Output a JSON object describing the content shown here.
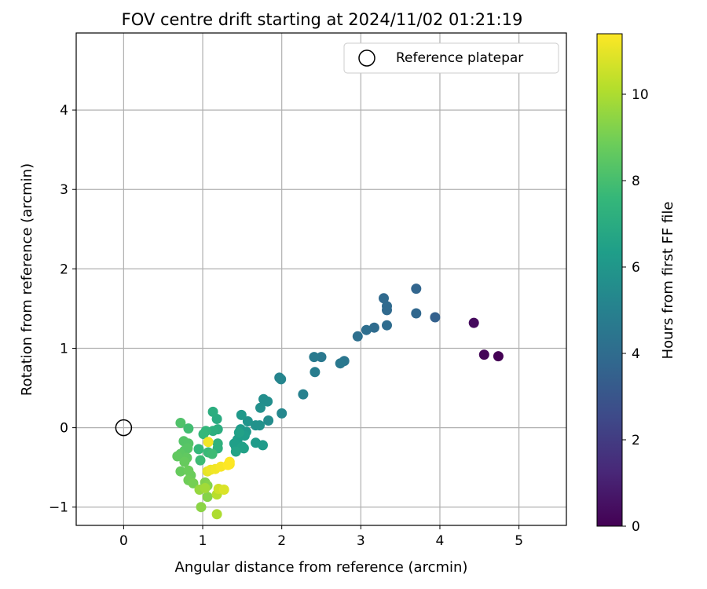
{
  "chart_data": {
    "type": "scatter",
    "title": "FOV centre drift starting at 2024/11/02 01:21:19",
    "xlabel": "Angular distance from reference (arcmin)",
    "ylabel": "Rotation from reference (arcmin)",
    "xlim": [
      -0.6,
      5.6
    ],
    "ylim": [
      -1.23,
      4.97
    ],
    "xticks": [
      0,
      1,
      2,
      3,
      4,
      5
    ],
    "yticks": [
      -1,
      0,
      1,
      2,
      3,
      4
    ],
    "grid": true,
    "legend": {
      "position": "top-right",
      "entries": [
        "Reference platepar"
      ]
    },
    "colorbar": {
      "label": "Hours from first FF file",
      "colormap": "viridis",
      "range": [
        0,
        11.4
      ],
      "ticks": [
        0,
        2,
        4,
        6,
        8,
        10
      ]
    },
    "reference_point": {
      "x": 0,
      "y": 0,
      "label": "Reference platepar"
    },
    "points": [
      {
        "x": 4.43,
        "y": 1.32,
        "h": 0.3
      },
      {
        "x": 4.56,
        "y": 0.92,
        "h": 0.15
      },
      {
        "x": 4.74,
        "y": 0.9,
        "h": 0.0
      },
      {
        "x": 3.94,
        "y": 1.39,
        "h": 3.5
      },
      {
        "x": 3.7,
        "y": 1.75,
        "h": 3.7
      },
      {
        "x": 3.7,
        "y": 1.44,
        "h": 3.8
      },
      {
        "x": 3.29,
        "y": 1.63,
        "h": 3.9
      },
      {
        "x": 3.33,
        "y": 1.53,
        "h": 3.9
      },
      {
        "x": 3.33,
        "y": 1.48,
        "h": 3.9
      },
      {
        "x": 3.33,
        "y": 1.29,
        "h": 4.0
      },
      {
        "x": 3.17,
        "y": 1.26,
        "h": 4.0
      },
      {
        "x": 3.07,
        "y": 1.23,
        "h": 4.1
      },
      {
        "x": 2.96,
        "y": 1.15,
        "h": 4.2
      },
      {
        "x": 2.79,
        "y": 0.84,
        "h": 4.5
      },
      {
        "x": 2.74,
        "y": 0.81,
        "h": 4.6
      },
      {
        "x": 2.5,
        "y": 0.89,
        "h": 4.6
      },
      {
        "x": 2.41,
        "y": 0.89,
        "h": 4.7
      },
      {
        "x": 2.42,
        "y": 0.7,
        "h": 4.8
      },
      {
        "x": 2.27,
        "y": 0.42,
        "h": 5.0
      },
      {
        "x": 1.97,
        "y": 0.63,
        "h": 5.1
      },
      {
        "x": 1.99,
        "y": 0.61,
        "h": 5.2
      },
      {
        "x": 2.0,
        "y": 0.18,
        "h": 5.3
      },
      {
        "x": 1.83,
        "y": 0.09,
        "h": 5.5
      },
      {
        "x": 1.77,
        "y": 0.36,
        "h": 5.6
      },
      {
        "x": 1.82,
        "y": 0.33,
        "h": 5.6
      },
      {
        "x": 1.73,
        "y": 0.25,
        "h": 5.7
      },
      {
        "x": 1.72,
        "y": 0.03,
        "h": 5.8
      },
      {
        "x": 1.67,
        "y": 0.03,
        "h": 5.8
      },
      {
        "x": 1.57,
        "y": 0.08,
        "h": 5.9
      },
      {
        "x": 1.49,
        "y": 0.16,
        "h": 6.1
      },
      {
        "x": 1.48,
        "y": -0.02,
        "h": 6.2
      },
      {
        "x": 1.55,
        "y": -0.05,
        "h": 6.1
      },
      {
        "x": 1.53,
        "y": -0.1,
        "h": 6.3
      },
      {
        "x": 1.44,
        "y": -0.15,
        "h": 6.3
      },
      {
        "x": 1.4,
        "y": -0.2,
        "h": 6.4
      },
      {
        "x": 1.42,
        "y": -0.24,
        "h": 6.4
      },
      {
        "x": 1.5,
        "y": -0.24,
        "h": 6.5
      },
      {
        "x": 1.52,
        "y": -0.26,
        "h": 6.5
      },
      {
        "x": 1.42,
        "y": -0.3,
        "h": 6.6
      },
      {
        "x": 1.67,
        "y": -0.19,
        "h": 6.2
      },
      {
        "x": 1.76,
        "y": -0.22,
        "h": 6.2
      },
      {
        "x": 1.46,
        "y": -0.06,
        "h": 6.5
      },
      {
        "x": 1.18,
        "y": 0.11,
        "h": 7.0
      },
      {
        "x": 1.13,
        "y": 0.2,
        "h": 7.1
      },
      {
        "x": 1.19,
        "y": -0.02,
        "h": 7.1
      },
      {
        "x": 1.13,
        "y": -0.04,
        "h": 7.2
      },
      {
        "x": 1.19,
        "y": -0.2,
        "h": 7.3
      },
      {
        "x": 1.19,
        "y": -0.26,
        "h": 7.3
      },
      {
        "x": 1.04,
        "y": -0.04,
        "h": 7.5
      },
      {
        "x": 1.01,
        "y": -0.08,
        "h": 7.6
      },
      {
        "x": 0.95,
        "y": -0.27,
        "h": 7.6
      },
      {
        "x": 1.07,
        "y": -0.31,
        "h": 7.7
      },
      {
        "x": 1.12,
        "y": -0.33,
        "h": 7.8
      },
      {
        "x": 0.97,
        "y": -0.41,
        "h": 7.8
      },
      {
        "x": 0.82,
        "y": -0.01,
        "h": 7.9
      },
      {
        "x": 0.72,
        "y": 0.06,
        "h": 8.2
      },
      {
        "x": 0.76,
        "y": -0.17,
        "h": 8.3
      },
      {
        "x": 0.82,
        "y": -0.2,
        "h": 8.3
      },
      {
        "x": 0.81,
        "y": -0.26,
        "h": 8.4
      },
      {
        "x": 0.77,
        "y": -0.29,
        "h": 8.4
      },
      {
        "x": 0.72,
        "y": -0.33,
        "h": 8.5
      },
      {
        "x": 0.68,
        "y": -0.36,
        "h": 8.6
      },
      {
        "x": 0.8,
        "y": -0.38,
        "h": 8.6
      },
      {
        "x": 0.77,
        "y": -0.43,
        "h": 8.7
      },
      {
        "x": 0.72,
        "y": -0.55,
        "h": 8.7
      },
      {
        "x": 0.82,
        "y": -0.54,
        "h": 8.8
      },
      {
        "x": 0.85,
        "y": -0.6,
        "h": 8.8
      },
      {
        "x": 0.82,
        "y": -0.66,
        "h": 8.9
      },
      {
        "x": 0.88,
        "y": -0.7,
        "h": 9.0
      },
      {
        "x": 1.03,
        "y": -0.69,
        "h": 9.2
      },
      {
        "x": 1.06,
        "y": -0.73,
        "h": 9.3
      },
      {
        "x": 1.06,
        "y": -0.87,
        "h": 9.3
      },
      {
        "x": 0.98,
        "y": -1.0,
        "h": 9.4
      },
      {
        "x": 0.96,
        "y": -0.78,
        "h": 9.6
      },
      {
        "x": 1.03,
        "y": -0.76,
        "h": 9.8
      },
      {
        "x": 1.18,
        "y": -0.84,
        "h": 10.2
      },
      {
        "x": 1.18,
        "y": -1.09,
        "h": 10.0
      },
      {
        "x": 1.2,
        "y": -0.77,
        "h": 10.6
      },
      {
        "x": 1.27,
        "y": -0.78,
        "h": 10.8
      },
      {
        "x": 1.06,
        "y": -0.55,
        "h": 11.0
      },
      {
        "x": 1.1,
        "y": -0.53,
        "h": 11.1
      },
      {
        "x": 1.16,
        "y": -0.52,
        "h": 11.2
      },
      {
        "x": 1.23,
        "y": -0.49,
        "h": 11.3
      },
      {
        "x": 1.34,
        "y": -0.46,
        "h": 11.3
      },
      {
        "x": 1.34,
        "y": -0.43,
        "h": 11.4
      },
      {
        "x": 1.07,
        "y": -0.18,
        "h": 11.2
      },
      {
        "x": 1.32,
        "y": -0.47,
        "h": 11.4
      }
    ]
  }
}
